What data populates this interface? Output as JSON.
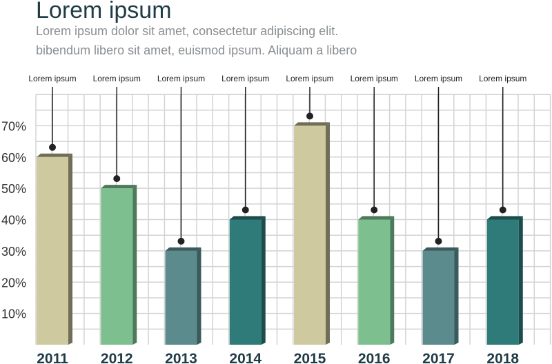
{
  "header": {
    "title": "Lorem ipsum",
    "subtitle_line1": "Lorem ipsum dolor sit amet, consectetur adipiscing elit.",
    "subtitle_line2": "bibendum libero sit amet, euismod ipsum. Aliquam a libero"
  },
  "chart_data": {
    "type": "bar",
    "categories": [
      "2011",
      "2012",
      "2013",
      "2014",
      "2015",
      "2016",
      "2017",
      "2018"
    ],
    "values": [
      60,
      50,
      30,
      40,
      70,
      40,
      30,
      40
    ],
    "annotations": [
      "Lorem ipsum",
      "Lorem ipsum",
      "Lorem ipsum",
      "Lorem ipsum",
      "Lorem ipsum",
      "Lorem ipsum",
      "Lorem ipsum",
      "Lorem ipsum"
    ],
    "yticks": [
      "10%",
      "20%",
      "30%",
      "40%",
      "50%",
      "60%",
      "70%"
    ],
    "ylim": [
      0,
      80
    ],
    "grid": true,
    "colors": [
      "#cfc99f",
      "#7dbf8e",
      "#5b8b8c",
      "#2e7b7a",
      "#cfc99f",
      "#7dbf8e",
      "#5b8b8c",
      "#2e7b7a"
    ],
    "side_colors": [
      "#6f6e58",
      "#4d7a5a",
      "#3b5a5b",
      "#1c4c4b",
      "#6f6e58",
      "#4d7a5a",
      "#3b5a5b",
      "#1c4c4b"
    ],
    "grid_color": "#d3d3d3"
  }
}
